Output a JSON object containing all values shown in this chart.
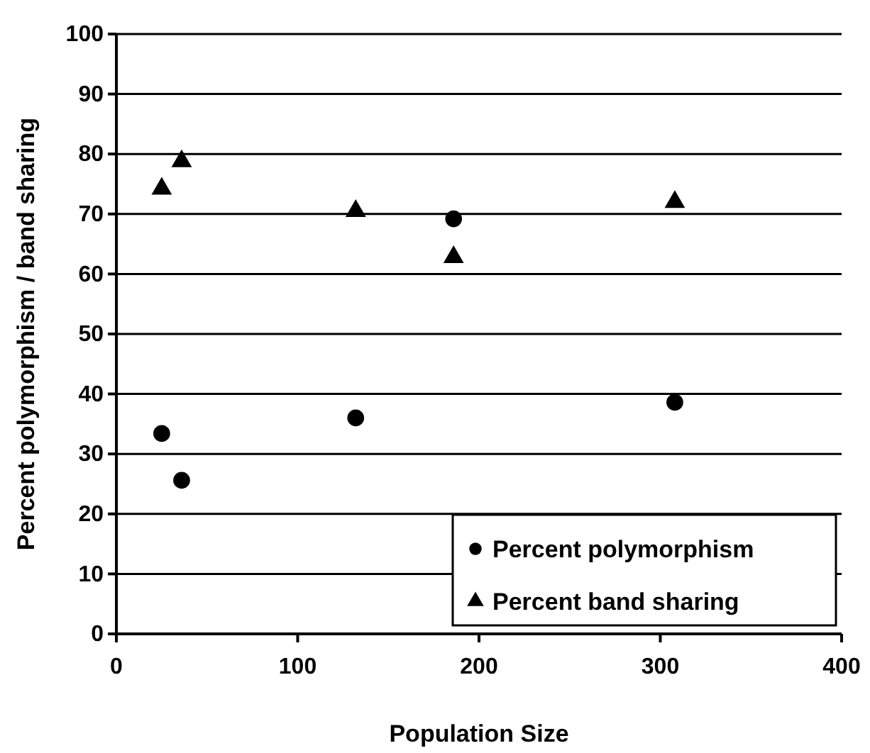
{
  "chart_data": {
    "type": "scatter",
    "xlabel": "Population Size",
    "ylabel": "Percent polymorphism / band sharing",
    "xlim": [
      0,
      400
    ],
    "xticks": [
      0,
      100,
      200,
      300,
      400
    ],
    "ylim": [
      0,
      100
    ],
    "yticks": [
      0,
      10,
      20,
      30,
      40,
      50,
      60,
      70,
      80,
      90,
      100
    ],
    "grid": "y",
    "legend": "bottom right",
    "series": [
      {
        "name": "Percent polymorphism",
        "color": "#000000",
        "marker": "circle",
        "x": [
          25,
          36,
          132,
          186,
          308
        ],
        "values": [
          33.4,
          25.6,
          36.0,
          69.2,
          38.6
        ]
      },
      {
        "name": "Percent band sharing",
        "color": "#000000",
        "marker": "triangle",
        "x": [
          25,
          36,
          132,
          186,
          308
        ],
        "values": [
          74.2,
          78.8,
          70.5,
          62.8,
          72.0
        ]
      }
    ]
  }
}
